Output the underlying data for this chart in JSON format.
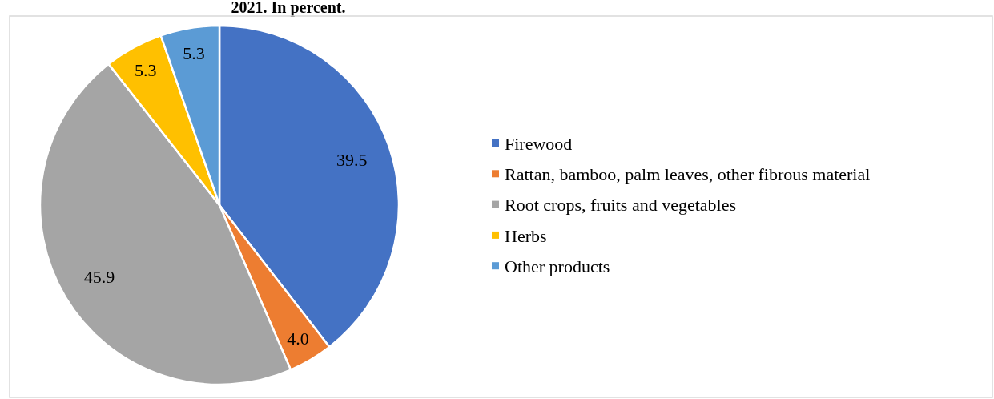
{
  "chart_data": {
    "type": "pie",
    "title": "2021. In percent.",
    "categories": [
      "Firewood",
      "Rattan, bamboo, palm leaves, other fibrous material",
      "Root crops, fruits and vegetables",
      "Herbs",
      "Other products"
    ],
    "values": [
      39.5,
      4.0,
      45.9,
      5.3,
      5.3
    ],
    "colors": [
      "#4472c4",
      "#ed7d31",
      "#a5a5a5",
      "#ffc000",
      "#5b9bd5"
    ],
    "value_labels": [
      "39.5",
      "4.0",
      "45.9",
      "5.3",
      "5.3"
    ],
    "legend": "right"
  }
}
